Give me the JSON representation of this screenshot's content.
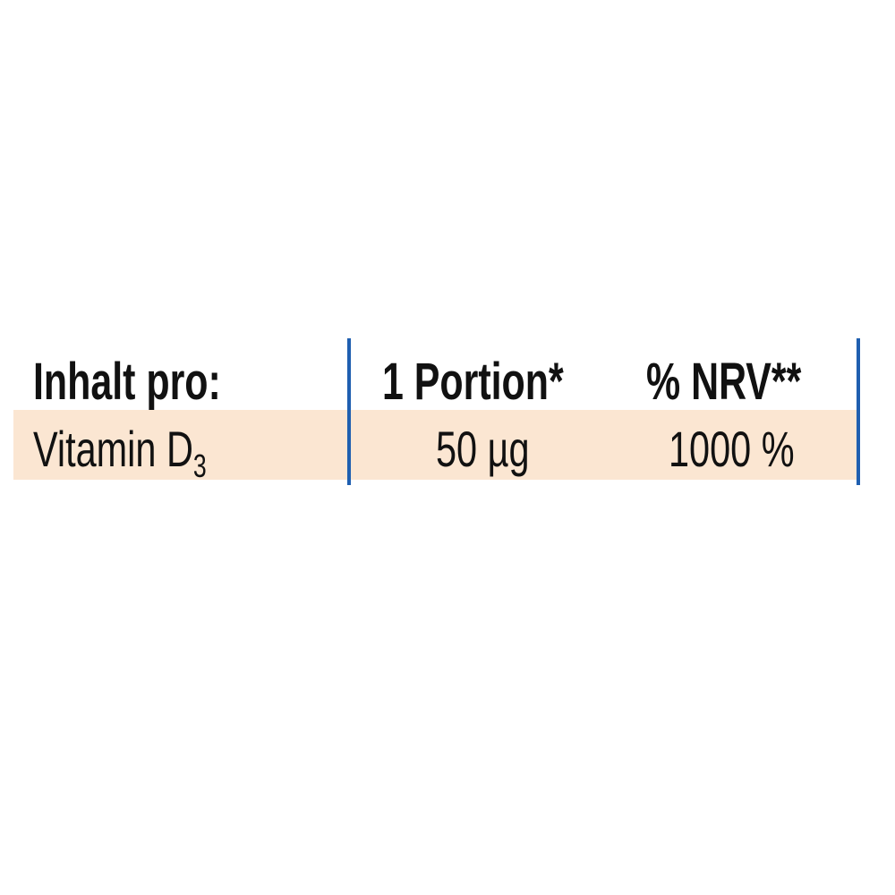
{
  "table": {
    "headers": [
      "Inhalt pro:",
      "1 Portion*",
      "% NRV**"
    ],
    "rows": [
      {
        "name": "Vitamin D",
        "subscript": "3",
        "portion": "50 µg",
        "nrv": "1000 %"
      }
    ],
    "colors": {
      "row_background": "#fbe6d2",
      "divider": "#1f5fb0"
    }
  }
}
